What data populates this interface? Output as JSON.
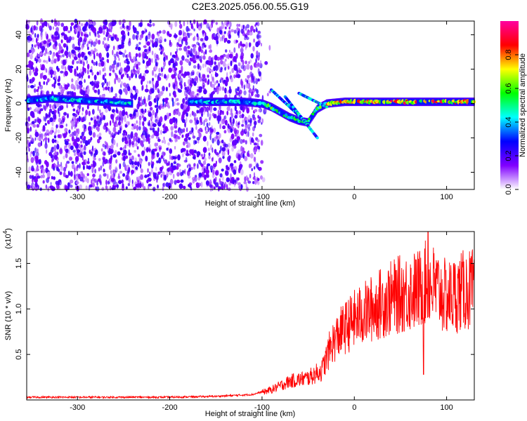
{
  "figure_title": "C2E3.2025.056.00.55.G19",
  "chart_data": [
    {
      "type": "heatmap",
      "xlabel": "Height of straight line (km)",
      "ylabel": "Frequency (Hz)",
      "xlim": [
        -355,
        130
      ],
      "ylim": [
        -50,
        48
      ],
      "x_ticks": [
        -300,
        -200,
        -100,
        0,
        100
      ],
      "x_tick_labels": [
        "-300",
        "-200",
        "-100",
        "0",
        "100"
      ],
      "y_ticks": [
        -40,
        -20,
        0,
        20,
        40
      ],
      "y_tick_labels": [
        "-40",
        "-20",
        "0",
        "20",
        "40"
      ],
      "colorbar": {
        "label": "Normalized spectral amplitude",
        "range": [
          0,
          1
        ],
        "ticks": [
          0.0,
          0.2,
          0.4,
          0.6,
          0.8
        ],
        "tick_labels": [
          "0.0",
          "0.2",
          "0.4",
          "0.6",
          "0.8"
        ],
        "colors": [
          "#ffffff",
          "#8000ff",
          "#0000ff",
          "#00ffff",
          "#00ff00",
          "#ffff00",
          "#ff0000",
          "#ff00a0"
        ]
      },
      "ridge": [
        {
          "x": -350,
          "y": 2
        },
        {
          "x": -330,
          "y": 3
        },
        {
          "x": -300,
          "y": 2
        },
        {
          "x": -270,
          "y": 1
        },
        {
          "x": -240,
          "y": 0
        },
        {
          "x": -180,
          "y": 1
        },
        {
          "x": -150,
          "y": 1
        },
        {
          "x": -120,
          "y": 1
        },
        {
          "x": -100,
          "y": 0
        },
        {
          "x": -90,
          "y": -2
        },
        {
          "x": -80,
          "y": -5
        },
        {
          "x": -70,
          "y": -8
        },
        {
          "x": -60,
          "y": -10
        },
        {
          "x": -50,
          "y": -11
        },
        {
          "x": -40,
          "y": -3
        },
        {
          "x": -30,
          "y": 0
        },
        {
          "x": -10,
          "y": 1
        },
        {
          "x": 0,
          "y": 1
        },
        {
          "x": 50,
          "y": 1
        },
        {
          "x": 100,
          "y": 1
        },
        {
          "x": 130,
          "y": 1
        }
      ],
      "noise_extent": {
        "x_from": -355,
        "x_to": -100
      }
    },
    {
      "type": "line",
      "xlabel": "Height of straight line (km)",
      "ylabel": "SNR (10 * v/v)",
      "y_multiplier_label": "(x10",
      "y_multiplier_exp": "4",
      "xlim": [
        -355,
        130
      ],
      "ylim": [
        0,
        1.85
      ],
      "x_ticks": [
        -300,
        -200,
        -100,
        0,
        100
      ],
      "x_tick_labels": [
        "-300",
        "-200",
        "-100",
        "0",
        "100"
      ],
      "y_ticks": [
        0.5,
        1.0,
        1.5
      ],
      "y_tick_labels": [
        "0.5",
        "1.0",
        "1.5"
      ],
      "series": [
        {
          "color": "#ff0000",
          "envelope": [
            {
              "x": -355,
              "y": 0.03
            },
            {
              "x": -300,
              "y": 0.03
            },
            {
              "x": -250,
              "y": 0.03
            },
            {
              "x": -200,
              "y": 0.03
            },
            {
              "x": -150,
              "y": 0.04
            },
            {
              "x": -110,
              "y": 0.06
            },
            {
              "x": -90,
              "y": 0.12
            },
            {
              "x": -70,
              "y": 0.22
            },
            {
              "x": -50,
              "y": 0.26
            },
            {
              "x": -35,
              "y": 0.35
            },
            {
              "x": -25,
              "y": 0.65
            },
            {
              "x": -15,
              "y": 0.8
            },
            {
              "x": 0,
              "y": 0.95
            },
            {
              "x": 15,
              "y": 1.05
            },
            {
              "x": 30,
              "y": 1.15
            },
            {
              "x": 50,
              "y": 1.25
            },
            {
              "x": 70,
              "y": 1.3
            },
            {
              "x": 80,
              "y": 1.4
            },
            {
              "x": 100,
              "y": 1.2
            },
            {
              "x": 120,
              "y": 1.3
            },
            {
              "x": 130,
              "y": 1.3
            }
          ],
          "peak": {
            "x": 80,
            "y": 1.85
          },
          "dip": {
            "x": 75,
            "y": 0.28
          }
        }
      ]
    }
  ]
}
